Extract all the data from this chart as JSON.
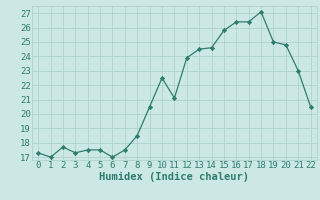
{
  "x": [
    0,
    1,
    2,
    3,
    4,
    5,
    6,
    7,
    8,
    9,
    10,
    11,
    12,
    13,
    14,
    15,
    16,
    17,
    18,
    19,
    20,
    21,
    22
  ],
  "y": [
    17.3,
    17.0,
    17.7,
    17.3,
    17.5,
    17.5,
    17.0,
    17.5,
    18.5,
    20.5,
    22.5,
    21.1,
    23.9,
    24.5,
    24.6,
    25.8,
    26.4,
    26.4,
    27.1,
    25.0,
    24.8,
    23.0,
    20.5
  ],
  "xlabel": "Humidex (Indice chaleur)",
  "ylim": [
    16.8,
    27.5
  ],
  "xlim": [
    -0.5,
    22.5
  ],
  "yticks": [
    17,
    18,
    19,
    20,
    21,
    22,
    23,
    24,
    25,
    26,
    27
  ],
  "xticks": [
    0,
    1,
    2,
    3,
    4,
    5,
    6,
    7,
    8,
    9,
    10,
    11,
    12,
    13,
    14,
    15,
    16,
    17,
    18,
    19,
    20,
    21,
    22
  ],
  "line_color": "#2e7d6e",
  "marker_color": "#2e7d6e",
  "bg_color": "#cce8e4",
  "grid_color": "#aacfca",
  "font_color": "#2e7d6e",
  "font_size": 6.5
}
